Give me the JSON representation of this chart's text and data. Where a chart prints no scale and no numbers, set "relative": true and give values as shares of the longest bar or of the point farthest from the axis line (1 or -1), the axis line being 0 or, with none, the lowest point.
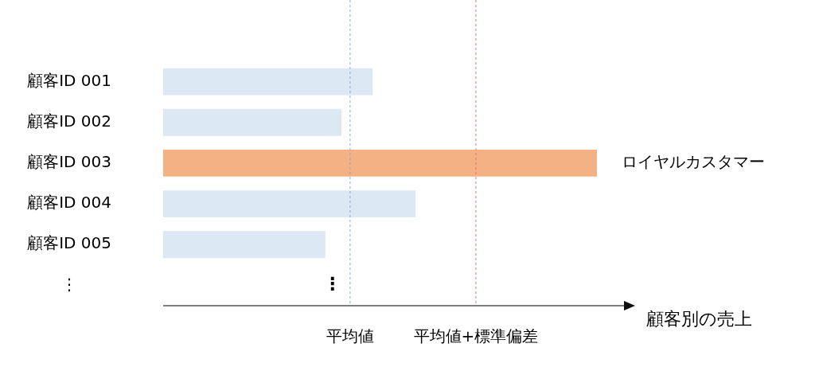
{
  "chart_data": {
    "type": "bar",
    "orientation": "horizontal",
    "relative": true,
    "categories": [
      "顧客ID 001",
      "顧客ID 002",
      "顧客ID 003",
      "顧客ID 004",
      "顧客ID 005",
      "⋮"
    ],
    "values": [
      0.483,
      0.411,
      1,
      0.582,
      0.374,
      null
    ],
    "colors": [
      "#dde8f5",
      "#dde8f5",
      "#f4b183",
      "#dde8f5",
      "#dde8f5",
      "#dde8f5"
    ],
    "xlabel": "顧客別の売上",
    "ref_lines": [
      {
        "axis": "x",
        "value": 0.431,
        "label": "平均値",
        "color": "#8aa6d6",
        "line_style": "dashed"
      },
      {
        "axis": "x",
        "value": 0.721,
        "label": "平均値+標準偏差",
        "color": "#d67a7a",
        "line_style": "dashed"
      }
    ],
    "annotations": [
      {
        "text": "ロイヤルカスタマー",
        "x": 1,
        "y": "顧客ID 003"
      },
      "⋮"
    ]
  }
}
